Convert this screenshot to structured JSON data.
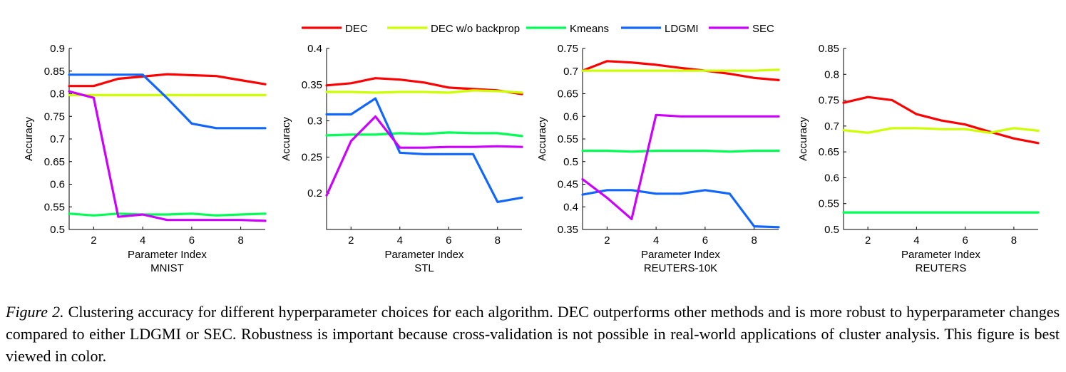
{
  "legend": [
    {
      "name": "DEC",
      "color": "#ff0000"
    },
    {
      "name": "DEC w/o backprop",
      "color": "#ccff00"
    },
    {
      "name": "Kmeans",
      "color": "#00ff55"
    },
    {
      "name": "LDGMI",
      "color": "#1166ff"
    },
    {
      "name": "SEC",
      "color": "#cc00ff"
    }
  ],
  "caption": {
    "label": "Figure 2.",
    "text": "Clustering accuracy for different hyperparameter choices for each algorithm. DEC outperforms other methods and is more robust to hyperparameter changes compared to either LDGMI or SEC. Robustness is important because cross-validation is not possible in real-world applications of cluster analysis. This figure is best viewed in color."
  },
  "chart_data": [
    {
      "type": "line",
      "title": "MNIST",
      "xlabel": "Parameter Index",
      "ylabel": "Accuracy",
      "xlim": [
        1,
        9
      ],
      "ylim": [
        0.5,
        0.9
      ],
      "xticks": [
        2,
        4,
        6,
        8
      ],
      "yticks": [
        0.5,
        0.55,
        0.6,
        0.65,
        0.7,
        0.75,
        0.8,
        0.85,
        0.9
      ],
      "ytick_labels": [
        "0.5",
        "0.55",
        "0.6",
        "0.65",
        "0.7",
        "0.75",
        "0.8",
        "0.85",
        "0.9"
      ],
      "x": [
        1,
        2,
        3,
        4,
        5,
        6,
        7,
        8,
        9
      ],
      "series": [
        {
          "name": "DEC",
          "values": [
            0.817,
            0.817,
            0.833,
            0.838,
            0.843,
            0.841,
            0.839,
            0.83,
            0.821
          ]
        },
        {
          "name": "DEC w/o backprop",
          "values": [
            0.797,
            0.797,
            0.797,
            0.797,
            0.797,
            0.797,
            0.797,
            0.797,
            0.797
          ]
        },
        {
          "name": "Kmeans",
          "values": [
            0.535,
            0.531,
            0.535,
            0.533,
            0.533,
            0.535,
            0.531,
            0.533,
            0.535
          ]
        },
        {
          "name": "LDGMI",
          "values": [
            0.842,
            0.842,
            0.842,
            0.842,
            0.79,
            0.734,
            0.724,
            0.724,
            0.724
          ]
        },
        {
          "name": "SEC",
          "values": [
            0.805,
            0.791,
            0.528,
            0.533,
            0.521,
            0.521,
            0.521,
            0.521,
            0.519
          ]
        }
      ]
    },
    {
      "type": "line",
      "title": "STL",
      "xlabel": "Parameter Index",
      "ylabel": "Accuracy",
      "xlim": [
        1,
        9
      ],
      "ylim": [
        0.15,
        0.4
      ],
      "xticks": [
        2,
        4,
        6,
        8
      ],
      "yticks": [
        0.2,
        0.25,
        0.3,
        0.35,
        0.4
      ],
      "ytick_labels": [
        "0.2",
        "0.25",
        "0.3",
        "0.35",
        "0.4"
      ],
      "x": [
        1,
        2,
        3,
        4,
        5,
        6,
        7,
        8,
        9
      ],
      "series": [
        {
          "name": "DEC",
          "values": [
            0.349,
            0.352,
            0.359,
            0.357,
            0.353,
            0.346,
            0.344,
            0.342,
            0.337
          ]
        },
        {
          "name": "DEC w/o backprop",
          "values": [
            0.34,
            0.34,
            0.339,
            0.34,
            0.34,
            0.339,
            0.342,
            0.341,
            0.339
          ]
        },
        {
          "name": "Kmeans",
          "values": [
            0.28,
            0.281,
            0.281,
            0.283,
            0.282,
            0.284,
            0.283,
            0.283,
            0.279
          ]
        },
        {
          "name": "LDGMI",
          "values": [
            0.309,
            0.309,
            0.331,
            0.256,
            0.254,
            0.254,
            0.254,
            0.188,
            0.194
          ]
        },
        {
          "name": "SEC",
          "values": [
            0.197,
            0.272,
            0.306,
            0.263,
            0.263,
            0.264,
            0.264,
            0.265,
            0.264
          ]
        }
      ]
    },
    {
      "type": "line",
      "title": "REUTERS-10K",
      "xlabel": "Parameter Index",
      "ylabel": "Accuracy",
      "xlim": [
        1,
        9
      ],
      "ylim": [
        0.35,
        0.75
      ],
      "xticks": [
        2,
        4,
        6,
        8
      ],
      "yticks": [
        0.35,
        0.4,
        0.45,
        0.5,
        0.55,
        0.6,
        0.65,
        0.7,
        0.75
      ],
      "ytick_labels": [
        "0.35",
        "0.4",
        "0.45",
        "0.5",
        "0.55",
        "0.6",
        "0.65",
        "0.7",
        "0.75"
      ],
      "x": [
        1,
        2,
        3,
        4,
        5,
        6,
        7,
        8,
        9
      ],
      "series": [
        {
          "name": "DEC",
          "values": [
            0.701,
            0.722,
            0.719,
            0.714,
            0.707,
            0.701,
            0.694,
            0.685,
            0.68
          ]
        },
        {
          "name": "DEC w/o backprop",
          "values": [
            0.701,
            0.701,
            0.701,
            0.701,
            0.701,
            0.701,
            0.701,
            0.701,
            0.703
          ]
        },
        {
          "name": "Kmeans",
          "values": [
            0.524,
            0.524,
            0.522,
            0.524,
            0.524,
            0.524,
            0.522,
            0.524,
            0.524
          ]
        },
        {
          "name": "LDGMI",
          "values": [
            0.427,
            0.437,
            0.437,
            0.429,
            0.429,
            0.437,
            0.429,
            0.357,
            0.355
          ]
        },
        {
          "name": "SEC",
          "values": [
            0.461,
            0.42,
            0.373,
            0.603,
            0.6,
            0.6,
            0.6,
            0.6,
            0.6
          ]
        }
      ]
    },
    {
      "type": "line",
      "title": "REUTERS",
      "xlabel": "Parameter Index",
      "ylabel": "Accuracy",
      "xlim": [
        1,
        9
      ],
      "ylim": [
        0.5,
        0.85
      ],
      "xticks": [
        2,
        4,
        6,
        8
      ],
      "yticks": [
        0.5,
        0.55,
        0.6,
        0.65,
        0.7,
        0.75,
        0.8,
        0.85
      ],
      "ytick_labels": [
        "0.5",
        "0.55",
        "0.6",
        "0.65",
        "0.7",
        "0.75",
        "0.8",
        "0.85"
      ],
      "x": [
        1,
        2,
        3,
        4,
        5,
        6,
        7,
        8,
        9
      ],
      "series": [
        {
          "name": "DEC",
          "values": [
            0.745,
            0.756,
            0.75,
            0.723,
            0.711,
            0.703,
            0.689,
            0.676,
            0.667
          ]
        },
        {
          "name": "DEC w/o backprop",
          "values": [
            0.692,
            0.687,
            0.696,
            0.696,
            0.694,
            0.694,
            0.687,
            0.696,
            0.691
          ]
        },
        {
          "name": "Kmeans",
          "values": [
            0.533,
            0.533,
            0.533,
            0.533,
            0.533,
            0.533,
            0.533,
            0.533,
            0.533
          ]
        }
      ]
    }
  ]
}
